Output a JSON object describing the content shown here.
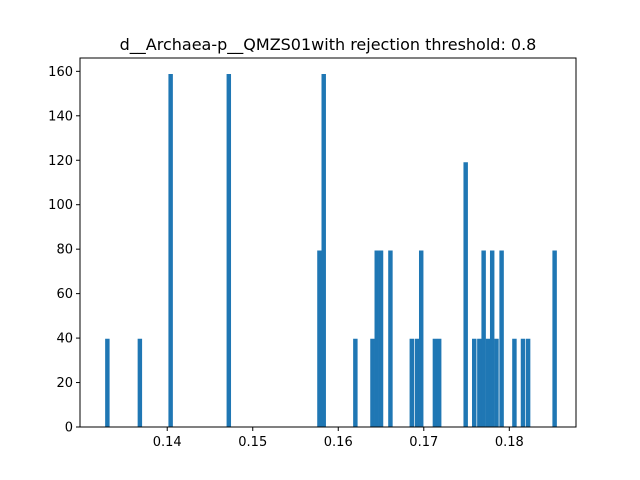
{
  "chart_data": {
    "type": "bar",
    "title": "d__Archaea-p__QMZS01with rejection threshold: 0.8",
    "xlabel": "",
    "ylabel": "",
    "xlim": [
      0.1298,
      0.1878
    ],
    "ylim": [
      0,
      166
    ],
    "bin_width": 0.00052,
    "bar_color": "#1f77b4",
    "x_ticks": [
      "0.14",
      "0.15",
      "0.16",
      "0.17",
      "0.18"
    ],
    "y_ticks": [
      "0",
      "20",
      "40",
      "60",
      "80",
      "100",
      "120",
      "140",
      "160"
    ],
    "grid": false,
    "legend": "none",
    "bins": [
      {
        "x": 0.133,
        "y": 39.7
      },
      {
        "x": 0.1368,
        "y": 39.7
      },
      {
        "x": 0.1404,
        "y": 158.8
      },
      {
        "x": 0.1472,
        "y": 158.8
      },
      {
        "x": 0.1578,
        "y": 79.4
      },
      {
        "x": 0.1583,
        "y": 158.8
      },
      {
        "x": 0.162,
        "y": 39.7
      },
      {
        "x": 0.164,
        "y": 39.7
      },
      {
        "x": 0.1645,
        "y": 79.4
      },
      {
        "x": 0.165,
        "y": 79.4
      },
      {
        "x": 0.1661,
        "y": 79.4
      },
      {
        "x": 0.1686,
        "y": 39.7
      },
      {
        "x": 0.1692,
        "y": 39.7
      },
      {
        "x": 0.1697,
        "y": 79.4
      },
      {
        "x": 0.1713,
        "y": 39.7
      },
      {
        "x": 0.1718,
        "y": 39.7
      },
      {
        "x": 0.1749,
        "y": 119.1
      },
      {
        "x": 0.1759,
        "y": 39.7
      },
      {
        "x": 0.1765,
        "y": 39.7
      },
      {
        "x": 0.177,
        "y": 79.4
      },
      {
        "x": 0.1775,
        "y": 39.7
      },
      {
        "x": 0.178,
        "y": 79.4
      },
      {
        "x": 0.1785,
        "y": 39.7
      },
      {
        "x": 0.1791,
        "y": 79.4
      },
      {
        "x": 0.1806,
        "y": 39.7
      },
      {
        "x": 0.1816,
        "y": 39.7
      },
      {
        "x": 0.1822,
        "y": 39.7
      },
      {
        "x": 0.1853,
        "y": 79.4
      }
    ]
  }
}
